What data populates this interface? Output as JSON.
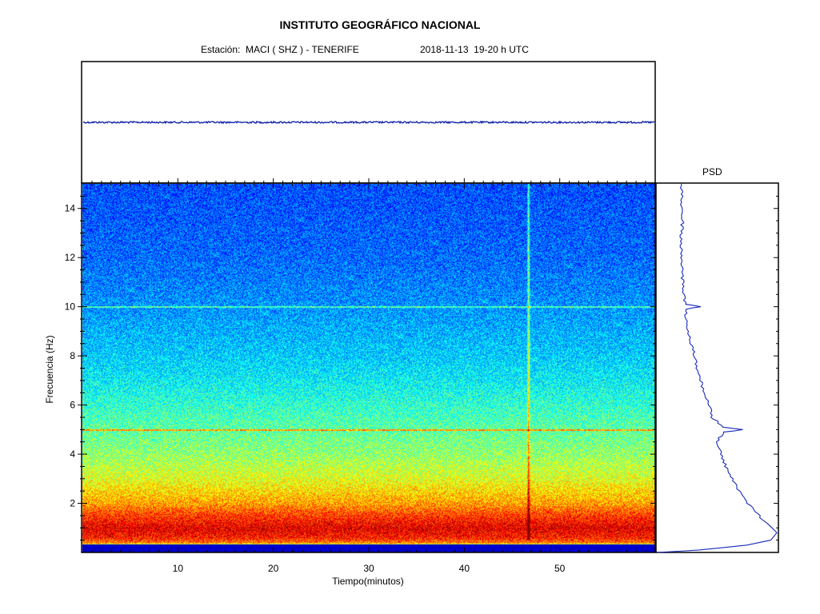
{
  "header": {
    "title": "INSTITUTO GEOGRÁFICO NACIONAL",
    "station": "Estación:  MACI ( SHZ ) - TENERIFE",
    "datetime": "2018-11-13  19-20 h UTC"
  },
  "psd_title": "PSD",
  "colors": {
    "waveform": "#0a1ea8",
    "psd_line": "#1a2ab8",
    "spectrogram_low": "#000070",
    "spectrogram_mid": "#00e0f0",
    "spectrogram_high": "#ffff00"
  },
  "chart_data": [
    {
      "type": "line",
      "name": "waveform",
      "description": "seismogram trace, flat with low-amplitude noise",
      "x": [
        0,
        60
      ],
      "y": [
        0,
        0
      ],
      "xlim": [
        0,
        60
      ]
    },
    {
      "type": "heatmap",
      "name": "spectrogram",
      "xlabel": "Tiempo(minutos)",
      "ylabel": "Frecuencia  (Hz)",
      "xlim": [
        0,
        60
      ],
      "ylim": [
        0,
        15
      ],
      "xticks": [
        "10",
        "20",
        "30",
        "40",
        "50"
      ],
      "yticks": [
        "2",
        "4",
        "6",
        "8",
        "10",
        "12",
        "14"
      ],
      "xtick_values": [
        10,
        20,
        30,
        40,
        50
      ],
      "ytick_values": [
        2,
        4,
        6,
        8,
        10,
        12,
        14
      ],
      "energy_profile": {
        "freq_hz": [
          0,
          0.2,
          0.4,
          0.6,
          1.0,
          1.5,
          2,
          3,
          4,
          5,
          6,
          7,
          8,
          10,
          12,
          15
        ],
        "intensity": [
          0.05,
          0.08,
          0.75,
          0.85,
          0.9,
          0.82,
          0.72,
          0.6,
          0.52,
          0.47,
          0.42,
          0.37,
          0.33,
          0.27,
          0.23,
          0.2
        ]
      },
      "harmonic_lines_hz": [
        5,
        10
      ],
      "transient_event_minute": 46.7
    },
    {
      "type": "line",
      "name": "PSD",
      "x_unit": "relative power",
      "y_unit": "Hz",
      "ylim": [
        0,
        15
      ],
      "freq_hz": [
        0,
        0.1,
        0.3,
        0.5,
        0.8,
        1.0,
        1.5,
        2.0,
        2.5,
        3.0,
        3.5,
        4.0,
        4.5,
        4.9,
        5.0,
        5.1,
        5.5,
        6.0,
        6.5,
        7.0,
        7.5,
        8.0,
        8.5,
        9.0,
        9.5,
        9.9,
        10.0,
        10.1,
        10.5,
        11,
        11.5,
        12,
        12.5,
        13,
        13.5,
        14,
        14.5,
        15
      ],
      "power": [
        0.0,
        0.35,
        0.75,
        0.95,
        1.0,
        0.96,
        0.85,
        0.76,
        0.68,
        0.63,
        0.57,
        0.53,
        0.5,
        0.55,
        0.72,
        0.55,
        0.46,
        0.43,
        0.39,
        0.36,
        0.33,
        0.31,
        0.28,
        0.26,
        0.24,
        0.23,
        0.37,
        0.23,
        0.22,
        0.21,
        0.21,
        0.2,
        0.2,
        0.2,
        0.21,
        0.2,
        0.21,
        0.2
      ]
    }
  ]
}
